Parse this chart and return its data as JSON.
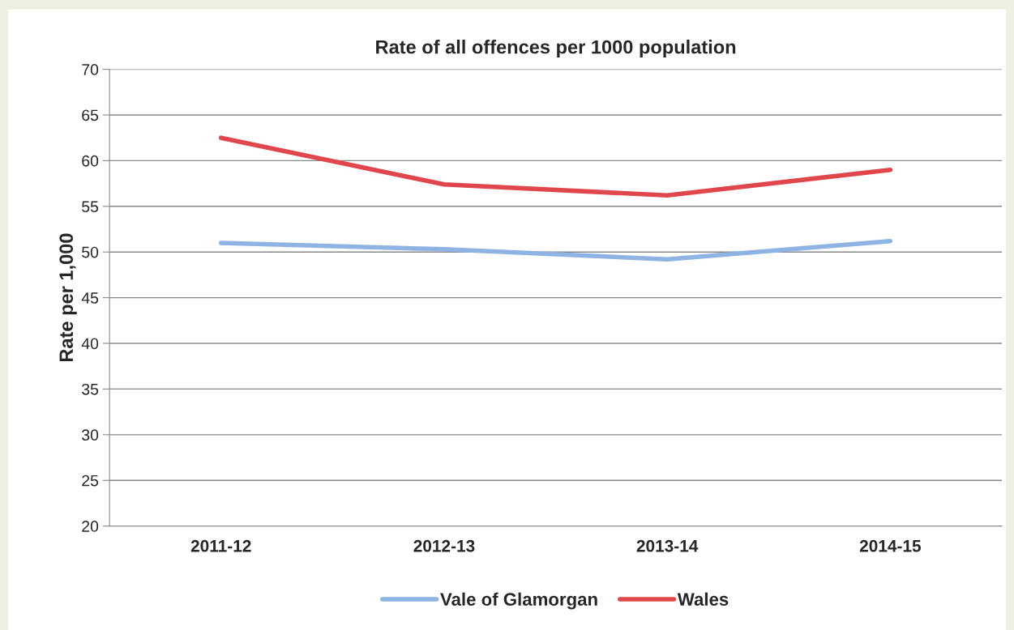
{
  "chart_data": {
    "type": "line",
    "title": "Rate of all offences per 1000 population",
    "ylabel": "Rate per 1,000",
    "categories": [
      "2011-12",
      "2012-13",
      "2013-14",
      "2014-15"
    ],
    "series": [
      {
        "name": "Vale of Glamorgan",
        "color": "#8db4e2",
        "values": [
          51.0,
          50.3,
          49.2,
          51.2
        ]
      },
      {
        "name": "Wales",
        "color": "#e0474c",
        "values": [
          62.5,
          57.4,
          56.2,
          59.0
        ]
      }
    ],
    "ylim": [
      20,
      70
    ],
    "yticks": [
      20,
      25,
      30,
      35,
      40,
      45,
      50,
      55,
      60,
      65,
      70
    ],
    "grid": "y",
    "legend": "bottom",
    "marker": "none",
    "line_style": "solid"
  }
}
